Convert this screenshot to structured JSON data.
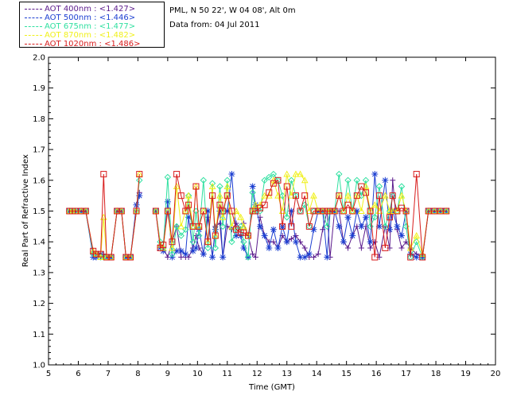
{
  "header": {
    "location": "PML, N 50 22', W 04 08', Alt 0m",
    "date": "Data from: 04 Jul 2011"
  },
  "legend": [
    {
      "label": "AOT  400nm : <1.427>",
      "color": "#5a1a8c"
    },
    {
      "label": "AOT  500nm : <1.446>",
      "color": "#1c3fd1"
    },
    {
      "label": "AOT  675nm : <1.477>",
      "color": "#2fe0a0"
    },
    {
      "label": "AOT  870nm : <1.482>",
      "color": "#f0f01a"
    },
    {
      "label": "AOT 1020nm : <1.486>",
      "color": "#d81c1c"
    }
  ],
  "chart_data": {
    "type": "line",
    "xlabel": "Time (GMT)",
    "ylabel": "Real Part of Refractive Index",
    "xlim": [
      5,
      20
    ],
    "ylim": [
      1.0,
      2.0
    ],
    "xticks": [
      "5",
      "6",
      "7",
      "8",
      "9",
      "10",
      "11",
      "12",
      "13",
      "14",
      "15",
      "16",
      "17",
      "18",
      "19",
      "20"
    ],
    "yticks": [
      "1.0",
      "1.1",
      "1.2",
      "1.3",
      "1.4",
      "1.5",
      "1.6",
      "1.7",
      "1.8",
      "1.9",
      "2.0"
    ],
    "legend_position": "top-left outside",
    "series": [
      {
        "name": "AOT  400nm : <1.427>",
        "color": "#5a1a8c",
        "marker": "plus",
        "x": [
          5.7,
          5.8,
          5.9,
          6.1,
          6.25,
          6.5,
          6.6,
          6.75,
          6.85,
          6.95,
          7.1,
          7.3,
          7.45,
          7.6,
          7.75,
          7.95,
          8.05,
          8.6,
          8.75,
          8.85,
          9.0,
          9.15,
          9.3,
          9.45,
          9.6,
          9.7,
          9.85,
          9.95,
          10.05,
          10.2,
          10.35,
          10.5,
          10.6,
          10.75,
          10.85,
          11.0,
          11.15,
          11.3,
          11.45,
          11.55,
          11.7,
          11.85,
          11.95,
          12.1,
          12.25,
          12.4,
          12.55,
          12.7,
          12.85,
          13.0,
          13.15,
          13.3,
          13.45,
          13.6,
          13.75,
          13.9,
          14.05,
          14.2,
          14.35,
          14.45,
          14.6,
          14.75,
          14.9,
          15.05,
          15.2,
          15.35,
          15.5,
          15.65,
          15.8,
          15.95,
          16.1,
          16.3,
          16.45,
          16.55,
          16.7,
          16.85,
          17.0,
          17.15,
          17.35,
          17.55,
          17.75,
          17.95,
          18.15,
          18.35
        ],
        "y": [
          1.5,
          1.5,
          1.5,
          1.5,
          1.5,
          1.36,
          1.35,
          1.35,
          1.36,
          1.35,
          1.35,
          1.5,
          1.5,
          1.35,
          1.35,
          1.5,
          1.56,
          1.5,
          1.39,
          1.38,
          1.35,
          1.4,
          1.45,
          1.35,
          1.35,
          1.35,
          1.38,
          1.42,
          1.38,
          1.36,
          1.48,
          1.35,
          1.45,
          1.46,
          1.35,
          1.45,
          1.44,
          1.46,
          1.44,
          1.46,
          1.42,
          1.36,
          1.35,
          1.48,
          1.42,
          1.4,
          1.4,
          1.38,
          1.42,
          1.4,
          1.41,
          1.42,
          1.4,
          1.38,
          1.35,
          1.35,
          1.36,
          1.44,
          1.5,
          1.35,
          1.5,
          1.5,
          1.4,
          1.38,
          1.42,
          1.45,
          1.38,
          1.45,
          1.38,
          1.4,
          1.35,
          1.45,
          1.38,
          1.6,
          1.44,
          1.38,
          1.4,
          1.38,
          1.36,
          1.35,
          1.5,
          1.5,
          1.5,
          1.5
        ]
      },
      {
        "name": "AOT  500nm : <1.446>",
        "color": "#1c3fd1",
        "marker": "asterisk",
        "x": [
          5.7,
          5.8,
          5.9,
          6.1,
          6.25,
          6.5,
          6.6,
          6.75,
          6.85,
          6.95,
          7.1,
          7.3,
          7.45,
          7.6,
          7.75,
          7.95,
          8.05,
          8.6,
          8.75,
          8.85,
          9.0,
          9.15,
          9.3,
          9.45,
          9.6,
          9.7,
          9.85,
          9.95,
          10.05,
          10.2,
          10.35,
          10.5,
          10.6,
          10.75,
          10.85,
          11.0,
          11.15,
          11.3,
          11.45,
          11.55,
          11.7,
          11.85,
          11.95,
          12.1,
          12.25,
          12.4,
          12.55,
          12.7,
          12.85,
          13.0,
          13.15,
          13.3,
          13.45,
          13.6,
          13.75,
          13.9,
          14.05,
          14.2,
          14.35,
          14.45,
          14.6,
          14.75,
          14.9,
          15.05,
          15.2,
          15.35,
          15.5,
          15.65,
          15.8,
          15.95,
          16.1,
          16.3,
          16.45,
          16.55,
          16.7,
          16.85,
          17.0,
          17.15,
          17.35,
          17.55,
          17.75,
          17.95,
          18.15,
          18.35
        ],
        "y": [
          1.5,
          1.5,
          1.5,
          1.5,
          1.5,
          1.35,
          1.35,
          1.36,
          1.35,
          1.35,
          1.35,
          1.5,
          1.5,
          1.35,
          1.35,
          1.52,
          1.55,
          1.5,
          1.38,
          1.37,
          1.53,
          1.35,
          1.37,
          1.37,
          1.36,
          1.48,
          1.37,
          1.38,
          1.44,
          1.36,
          1.5,
          1.35,
          1.44,
          1.5,
          1.35,
          1.5,
          1.62,
          1.42,
          1.42,
          1.38,
          1.35,
          1.58,
          1.52,
          1.45,
          1.42,
          1.38,
          1.44,
          1.38,
          1.45,
          1.4,
          1.5,
          1.4,
          1.35,
          1.35,
          1.36,
          1.44,
          1.5,
          1.5,
          1.35,
          1.5,
          1.5,
          1.45,
          1.4,
          1.48,
          1.42,
          1.5,
          1.45,
          1.48,
          1.4,
          1.62,
          1.45,
          1.6,
          1.44,
          1.5,
          1.45,
          1.42,
          1.5,
          1.36,
          1.35,
          1.35,
          1.5,
          1.5,
          1.5,
          1.5
        ]
      },
      {
        "name": "AOT  675nm : <1.477>",
        "color": "#2fe0a0",
        "marker": "diamond",
        "x": [
          5.7,
          5.8,
          5.9,
          6.1,
          6.25,
          6.5,
          6.6,
          6.75,
          6.85,
          6.95,
          7.1,
          7.3,
          7.45,
          7.6,
          7.75,
          7.95,
          8.05,
          8.6,
          8.75,
          8.85,
          9.0,
          9.15,
          9.3,
          9.45,
          9.6,
          9.7,
          9.85,
          9.95,
          10.05,
          10.2,
          10.35,
          10.5,
          10.6,
          10.75,
          10.85,
          11.0,
          11.15,
          11.3,
          11.45,
          11.55,
          11.7,
          11.85,
          11.95,
          12.1,
          12.25,
          12.4,
          12.55,
          12.7,
          12.85,
          13.0,
          13.15,
          13.3,
          13.45,
          13.6,
          13.75,
          13.9,
          14.05,
          14.2,
          14.35,
          14.45,
          14.6,
          14.75,
          14.9,
          15.05,
          15.2,
          15.35,
          15.5,
          15.65,
          15.8,
          15.95,
          16.1,
          16.3,
          16.45,
          16.55,
          16.7,
          16.85,
          17.0,
          17.15,
          17.35,
          17.55,
          17.75,
          17.95,
          18.15,
          18.35
        ],
        "y": [
          1.5,
          1.5,
          1.5,
          1.5,
          1.5,
          1.36,
          1.36,
          1.35,
          1.35,
          1.35,
          1.35,
          1.5,
          1.5,
          1.35,
          1.35,
          1.5,
          1.6,
          1.5,
          1.4,
          1.38,
          1.61,
          1.36,
          1.45,
          1.42,
          1.44,
          1.55,
          1.4,
          1.5,
          1.42,
          1.6,
          1.38,
          1.59,
          1.38,
          1.58,
          1.45,
          1.6,
          1.4,
          1.44,
          1.45,
          1.4,
          1.35,
          1.56,
          1.5,
          1.5,
          1.6,
          1.61,
          1.62,
          1.6,
          1.55,
          1.48,
          1.6,
          1.55,
          1.5,
          1.52,
          1.45,
          1.5,
          1.5,
          1.5,
          1.45,
          1.5,
          1.5,
          1.62,
          1.5,
          1.6,
          1.5,
          1.6,
          1.55,
          1.6,
          1.45,
          1.48,
          1.58,
          1.45,
          1.5,
          1.55,
          1.5,
          1.58,
          1.45,
          1.35,
          1.4,
          1.35,
          1.5,
          1.5,
          1.5,
          1.5
        ]
      },
      {
        "name": "AOT  870nm : <1.482>",
        "color": "#f0f01a",
        "marker": "triangle",
        "x": [
          5.7,
          5.8,
          5.9,
          6.1,
          6.25,
          6.5,
          6.6,
          6.75,
          6.85,
          6.95,
          7.1,
          7.3,
          7.45,
          7.6,
          7.75,
          7.95,
          8.05,
          8.6,
          8.75,
          8.85,
          9.0,
          9.15,
          9.3,
          9.45,
          9.6,
          9.7,
          9.85,
          9.95,
          10.05,
          10.2,
          10.35,
          10.5,
          10.6,
          10.75,
          10.85,
          11.0,
          11.15,
          11.3,
          11.45,
          11.55,
          11.7,
          11.85,
          11.95,
          12.1,
          12.25,
          12.4,
          12.55,
          12.7,
          12.85,
          13.0,
          13.15,
          13.3,
          13.45,
          13.6,
          13.75,
          13.9,
          14.05,
          14.2,
          14.35,
          14.45,
          14.6,
          14.75,
          14.9,
          15.05,
          15.2,
          15.35,
          15.5,
          15.65,
          15.8,
          15.95,
          16.1,
          16.3,
          16.45,
          16.55,
          16.7,
          16.85,
          17.0,
          17.15,
          17.35,
          17.55,
          17.75,
          17.95,
          18.15,
          18.35
        ],
        "y": [
          1.5,
          1.5,
          1.5,
          1.5,
          1.5,
          1.37,
          1.36,
          1.35,
          1.48,
          1.35,
          1.35,
          1.5,
          1.5,
          1.35,
          1.35,
          1.5,
          1.62,
          1.5,
          1.39,
          1.38,
          1.5,
          1.38,
          1.58,
          1.45,
          1.5,
          1.55,
          1.45,
          1.58,
          1.45,
          1.5,
          1.4,
          1.58,
          1.42,
          1.55,
          1.48,
          1.58,
          1.45,
          1.5,
          1.48,
          1.45,
          1.42,
          1.5,
          1.52,
          1.52,
          1.55,
          1.55,
          1.6,
          1.55,
          1.5,
          1.62,
          1.55,
          1.62,
          1.62,
          1.6,
          1.5,
          1.55,
          1.5,
          1.5,
          1.5,
          1.5,
          1.5,
          1.55,
          1.5,
          1.55,
          1.5,
          1.55,
          1.5,
          1.58,
          1.5,
          1.52,
          1.5,
          1.55,
          1.5,
          1.5,
          1.5,
          1.55,
          1.5,
          1.38,
          1.42,
          1.36,
          1.5,
          1.5,
          1.5,
          1.5
        ]
      },
      {
        "name": "AOT 1020nm : <1.486>",
        "color": "#d81c1c",
        "marker": "square",
        "x": [
          5.7,
          5.8,
          5.9,
          6.1,
          6.25,
          6.5,
          6.6,
          6.75,
          6.85,
          6.95,
          7.1,
          7.3,
          7.45,
          7.6,
          7.75,
          7.95,
          8.05,
          8.6,
          8.75,
          8.85,
          9.0,
          9.15,
          9.3,
          9.45,
          9.6,
          9.7,
          9.85,
          9.95,
          10.05,
          10.2,
          10.35,
          10.5,
          10.6,
          10.75,
          10.85,
          11.0,
          11.15,
          11.3,
          11.45,
          11.55,
          11.7,
          11.85,
          11.95,
          12.1,
          12.25,
          12.4,
          12.55,
          12.7,
          12.85,
          13.0,
          13.15,
          13.3,
          13.45,
          13.6,
          13.75,
          13.9,
          14.05,
          14.2,
          14.35,
          14.45,
          14.6,
          14.75,
          14.9,
          15.05,
          15.2,
          15.35,
          15.5,
          15.65,
          15.8,
          15.95,
          16.1,
          16.3,
          16.45,
          16.55,
          16.7,
          16.85,
          17.0,
          17.15,
          17.35,
          17.55,
          17.75,
          17.95,
          18.15,
          18.35
        ],
        "y": [
          1.5,
          1.5,
          1.5,
          1.5,
          1.5,
          1.37,
          1.36,
          1.36,
          1.62,
          1.35,
          1.35,
          1.5,
          1.5,
          1.35,
          1.35,
          1.5,
          1.62,
          1.5,
          1.38,
          1.39,
          1.5,
          1.4,
          1.62,
          1.55,
          1.5,
          1.52,
          1.45,
          1.58,
          1.45,
          1.5,
          1.4,
          1.55,
          1.42,
          1.52,
          1.5,
          1.55,
          1.5,
          1.44,
          1.43,
          1.43,
          1.42,
          1.5,
          1.5,
          1.51,
          1.52,
          1.56,
          1.59,
          1.6,
          1.45,
          1.58,
          1.45,
          1.55,
          1.5,
          1.55,
          1.45,
          1.5,
          1.5,
          1.5,
          1.5,
          1.5,
          1.5,
          1.55,
          1.5,
          1.52,
          1.5,
          1.55,
          1.58,
          1.56,
          1.5,
          1.35,
          1.55,
          1.38,
          1.48,
          1.55,
          1.5,
          1.51,
          1.5,
          1.35,
          1.62,
          1.35,
          1.5,
          1.5,
          1.5,
          1.5
        ]
      }
    ]
  }
}
